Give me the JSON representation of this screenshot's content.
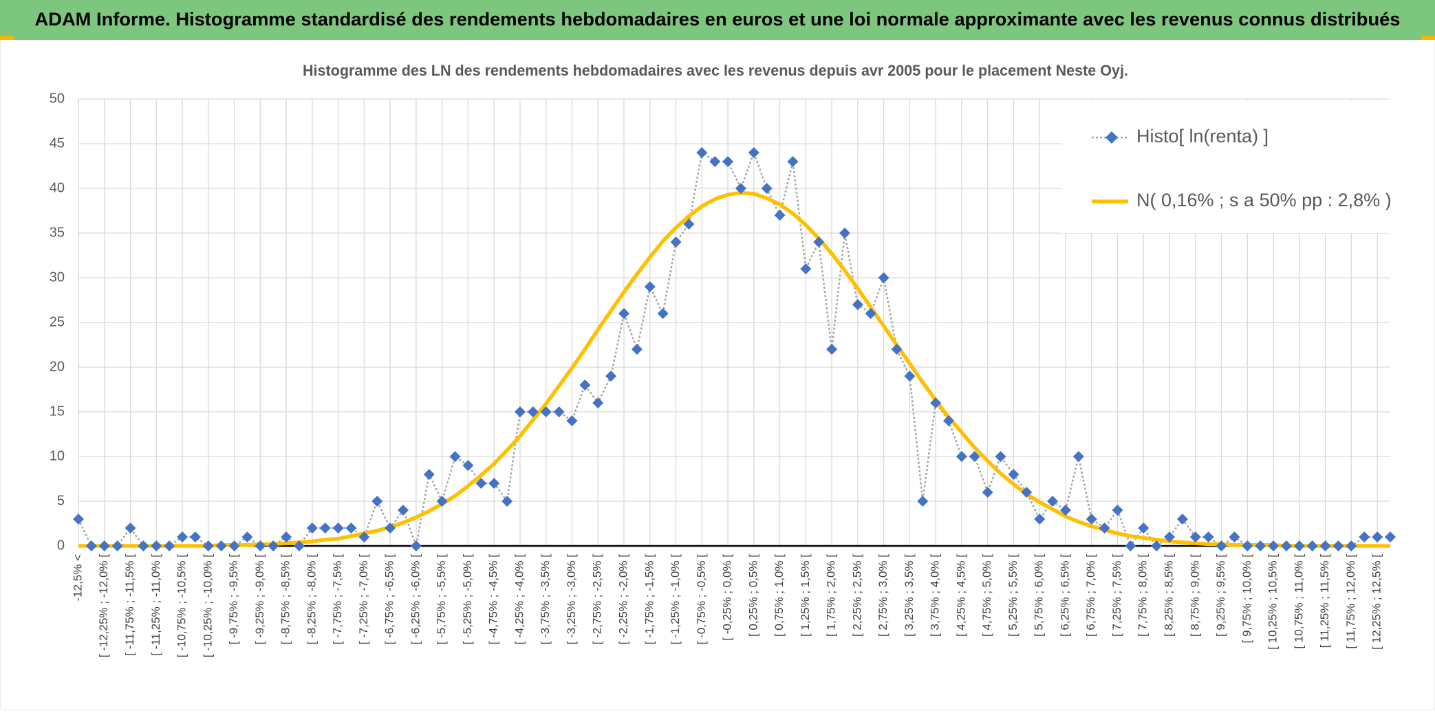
{
  "chart_data": {
    "type": "line",
    "title": "ADAM Informe. Histogramme standardisé des rendements hebdomadaires en euros et une loi normale approximante avec les revenus connus distribués",
    "subtitle": "Histogramme des LN des rendements hebdomadaires avec les revenus depuis avr 2005 pour le placement Neste Oyj.",
    "categories": [
      "-12,5% <",
      null,
      "[ -12,25% ; -12,0% [",
      null,
      "[ -11,75% ; -11,5% [",
      null,
      "[ -11,25% ; -11,0% [",
      null,
      "[ -10,75% ; -10,5% [",
      null,
      "[ -10,25% ; -10,0% [",
      null,
      "[ -9,75% ; -9,5% [",
      null,
      "[ -9,25% ; -9,0% [",
      null,
      "[ -8,75% ; -8,5% [",
      null,
      "[ -8,25% ; -8,0% [",
      null,
      "[ -7,75% ; -7,5% [",
      null,
      "[ -7,25% ; -7,0% [",
      null,
      "[ -6,75% ; -6,5% [",
      null,
      "[ -6,25% ; -6,0% [",
      null,
      "[ -5,75% ; -5,5% [",
      null,
      "[ -5,25% ; -5,0% [",
      null,
      "[ -4,75% ; -4,5% [",
      null,
      "[ -4,25% ; -4,0% [",
      null,
      "[ -3,75% ; -3,5% [",
      null,
      "[ -3,25% ; -3,0% [",
      null,
      "[ -2,75% ; -2,5% [",
      null,
      "[ -2,25% ; -2,0% [",
      null,
      "[ -1,75% ; -1,5% [",
      null,
      "[ -1,25% ; -1,0% [",
      null,
      "[ -0,75% ; -0,5% [",
      null,
      "[ -0,25% ; 0,0% [",
      null,
      "[ 0,25% ; 0,5% [",
      null,
      "[ 0,75% ; 1,0% [",
      null,
      "[ 1,25% ; 1,5% [",
      null,
      "[ 1,75% ; 2,0% [",
      null,
      "[ 2,25% ; 2,5% [",
      null,
      "[ 2,75% ; 3,0% [",
      null,
      "[ 3,25% ; 3,5% [",
      null,
      "[ 3,75% ; 4,0% [",
      null,
      "[ 4,25% ; 4,5% [",
      null,
      "[ 4,75% ; 5,0% [",
      null,
      "[ 5,25% ; 5,5% [",
      null,
      "[ 5,75% ; 6,0% [",
      null,
      "[ 6,25% ; 6,5% [",
      null,
      "[ 6,75% ; 7,0% [",
      null,
      "[ 7,25% ; 7,5% [",
      null,
      "[ 7,75% ; 8,0% [",
      null,
      "[ 8,25% ; 8,5% [",
      null,
      "[ 8,75% ; 9,0% [",
      null,
      "[ 9,25% ; 9,5% [",
      null,
      "[ 9,75% ; 10,0% [",
      null,
      "[ 10,25% ; 10,5% [",
      null,
      "[ 10,75% ; 11,0% [",
      null,
      "[ 11,25% ; 11,5% [",
      null,
      "[ 11,75% ; 12,0% [",
      null,
      "[ 12,25% ; 12,5% [",
      null
    ],
    "series": [
      {
        "name": "Histo[ ln(renta) ]",
        "color": "#4472c4",
        "line_color": "#a5a5a5",
        "values": [
          3,
          0,
          0,
          0,
          2,
          0,
          0,
          0,
          1,
          1,
          0,
          0,
          0,
          1,
          0,
          0,
          1,
          0,
          2,
          2,
          2,
          2,
          1,
          5,
          2,
          4,
          0,
          8,
          5,
          10,
          9,
          7,
          7,
          5,
          15,
          15,
          15,
          15,
          14,
          18,
          16,
          19,
          26,
          22,
          29,
          26,
          34,
          36,
          44,
          43,
          43,
          40,
          44,
          40,
          37,
          43,
          31,
          34,
          22,
          35,
          27,
          26,
          30,
          22,
          19,
          5,
          16,
          14,
          10,
          10,
          6,
          10,
          8,
          6,
          3,
          5,
          4,
          10,
          3,
          2,
          4,
          0,
          2,
          0,
          1,
          3,
          1,
          1,
          0,
          1,
          0,
          0,
          0,
          0,
          0,
          0,
          0,
          0,
          0,
          1,
          1,
          1
        ]
      },
      {
        "name": "N( 0,16% ; s a 50% pp : 2,8% )",
        "color": "#ffc000",
        "values": [
          0,
          0,
          0,
          0,
          0,
          0,
          0,
          0,
          0,
          0,
          0,
          0.1,
          0.1,
          0.1,
          0.2,
          0.2,
          0.3,
          0.4,
          0.5,
          0.7,
          0.8,
          1.1,
          1.4,
          1.7,
          2.1,
          2.6,
          3.2,
          3.9,
          4.7,
          5.6,
          6.7,
          7.9,
          9.2,
          10.7,
          12.3,
          14.1,
          15.9,
          17.9,
          19.9,
          22.0,
          24.2,
          26.3,
          28.4,
          30.4,
          32.3,
          34.1,
          35.6,
          36.9,
          38.0,
          38.8,
          39.3,
          39.5,
          39.4,
          38.9,
          38.2,
          37.2,
          35.9,
          34.4,
          32.7,
          30.8,
          28.8,
          26.7,
          24.6,
          22.5,
          20.4,
          18.3,
          16.3,
          14.4,
          12.7,
          11.0,
          9.5,
          8.1,
          6.9,
          5.8,
          4.9,
          4.1,
          3.3,
          2.7,
          2.2,
          1.8,
          1.4,
          1.1,
          0.9,
          0.7,
          0.5,
          0.4,
          0.3,
          0.2,
          0.2,
          0.1,
          0.1,
          0.1,
          0.1,
          0,
          0,
          0,
          0,
          0,
          0,
          0,
          0,
          0
        ]
      }
    ],
    "ylim": [
      0,
      50
    ],
    "yticks": [
      0,
      5,
      10,
      15,
      20,
      25,
      30,
      35,
      40,
      45,
      50
    ],
    "grid": true,
    "legend": "top-right"
  }
}
